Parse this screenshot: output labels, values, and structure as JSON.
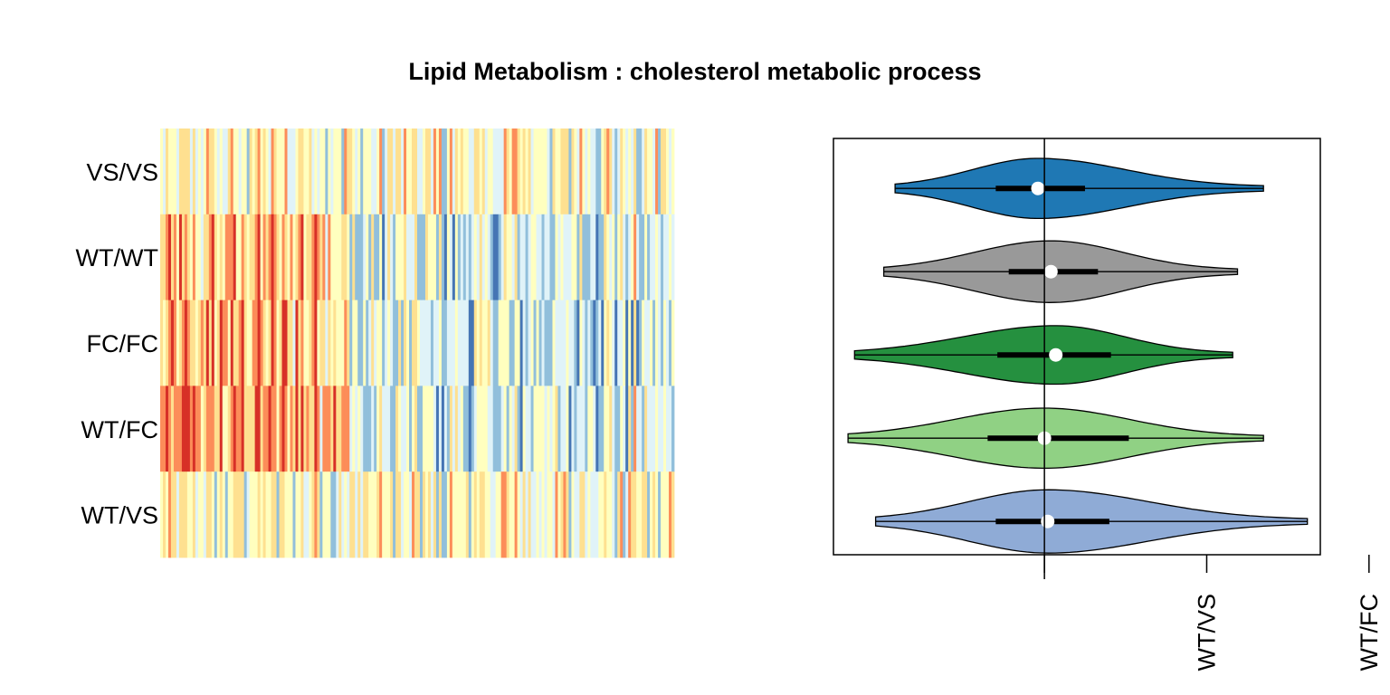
{
  "chart_data": [
    {
      "type": "heatmap",
      "title": "Lipid Metabolism : cholesterol metabolic process",
      "rows": [
        "VS/VS",
        "WT/WT",
        "FC/FC",
        "WT/FC",
        "WT/VS"
      ],
      "n_columns": 190,
      "color_scale": [
        "#4575b4",
        "#91bfdb",
        "#e0f3f8",
        "#ffffbf",
        "#fee090",
        "#fc8d59",
        "#d73027"
      ],
      "row_profile": {
        "VS/VS": {
          "left_block": "mixed",
          "right_block": "mixed"
        },
        "WT/WT": {
          "left_block": "warm",
          "right_block": "cool"
        },
        "FC/FC": {
          "left_block": "warm",
          "right_block": "cool"
        },
        "WT/FC": {
          "left_block": "hot",
          "right_block": "cool"
        },
        "WT/VS": {
          "left_block": "mixed",
          "right_block": "mixed"
        }
      },
      "left_block_fraction": 0.37
    },
    {
      "type": "violin",
      "orientation": "horizontal",
      "reference_line_x": 0,
      "xlim": [
        -1.3,
        1.7
      ],
      "x_ticks": [
        {
          "value": 0,
          "label": ""
        },
        {
          "value": 1,
          "label": "WT/VS"
        },
        {
          "value": 2,
          "label": "WT/FC"
        }
      ],
      "series": [
        {
          "group": "VS/VS",
          "color": "#1f78b4",
          "min": -0.92,
          "q1": -0.3,
          "median": -0.04,
          "q3": 0.25,
          "max": 1.35,
          "width": 0.38
        },
        {
          "group": "WT/WT",
          "color": "#999999",
          "min": -0.99,
          "q1": -0.22,
          "median": 0.04,
          "q3": 0.33,
          "max": 1.19,
          "width": 0.39
        },
        {
          "group": "FC/FC",
          "color": "#25903f",
          "min": -1.17,
          "q1": -0.29,
          "median": 0.07,
          "q3": 0.41,
          "max": 1.16,
          "width": 0.37
        },
        {
          "group": "WT/FC",
          "color": "#90d184",
          "min": -1.21,
          "q1": -0.35,
          "median": 0.0,
          "q3": 0.52,
          "max": 1.35,
          "width": 0.38
        },
        {
          "group": "WT/VS",
          "color": "#8fabd6",
          "min": -1.04,
          "q1": -0.3,
          "median": 0.02,
          "q3": 0.4,
          "max": 1.62,
          "width": 0.4
        }
      ]
    }
  ]
}
